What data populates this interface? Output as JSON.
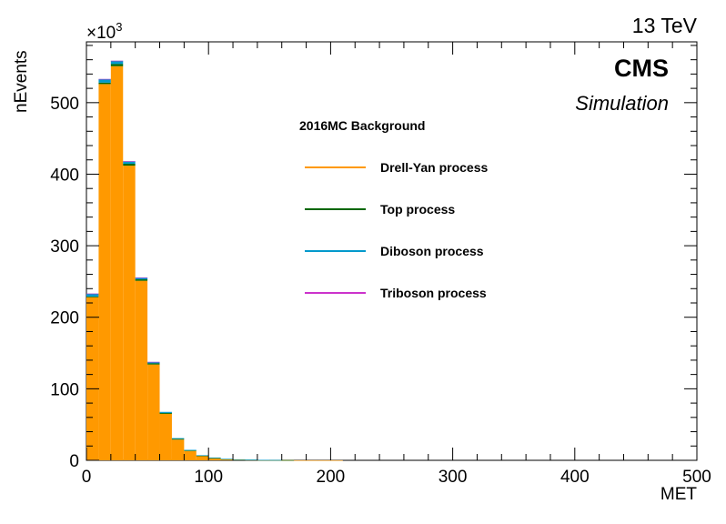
{
  "chart_data": {
    "type": "bar",
    "xlabel": "MET",
    "ylabel": "nEvents",
    "xlim": [
      0,
      500
    ],
    "ylim": [
      0,
      585
    ],
    "y_multiplier": "×10",
    "y_multiplier_exp": "3",
    "x_ticks": [
      "0",
      "100",
      "200",
      "300",
      "400",
      "500"
    ],
    "y_ticks": [
      "0",
      "100",
      "200",
      "300",
      "400",
      "500"
    ],
    "bin_width": 10,
    "bin_starts": [
      0,
      10,
      20,
      30,
      40,
      50,
      60,
      70,
      80,
      90,
      100,
      110,
      120,
      130,
      140,
      150,
      160,
      170,
      180,
      190,
      200
    ],
    "series": [
      {
        "name": "Drell-Yan process",
        "color": "#ff9900",
        "values": [
          228,
          526,
          551,
          412,
          251,
          134,
          65,
          29,
          13,
          6,
          3,
          1.5,
          1,
          0.6,
          0.4,
          0.3,
          0.2,
          0.1,
          0.1,
          0.1,
          0.1
        ]
      },
      {
        "name": "Top process",
        "color": "#006600",
        "values": [
          1,
          2,
          3,
          2.5,
          2,
          1.5,
          1.2,
          1,
          0.8,
          0.6,
          0.4,
          0.3,
          0.2,
          0.2,
          0.1,
          0.1,
          0.1,
          0,
          0,
          0,
          0
        ]
      },
      {
        "name": "Diboson process",
        "color": "#0099cc",
        "values": [
          4,
          5,
          4.5,
          3.5,
          2.5,
          2,
          1.5,
          1,
          0.8,
          0.5,
          0.4,
          0.3,
          0.2,
          0.1,
          0.1,
          0.1,
          0,
          0,
          0,
          0,
          0
        ]
      },
      {
        "name": "Triboson process",
        "color": "#cc33cc",
        "values": [
          0.1,
          0.1,
          0.1,
          0.1,
          0.1,
          0.1,
          0,
          0,
          0,
          0,
          0,
          0,
          0,
          0,
          0,
          0,
          0,
          0,
          0,
          0,
          0
        ]
      }
    ],
    "legend_title": "2016MC Background",
    "legend_position": "center-top",
    "grid": false
  },
  "labels": {
    "energy": "13 TeV",
    "experiment": "CMS",
    "simulation": "Simulation"
  }
}
